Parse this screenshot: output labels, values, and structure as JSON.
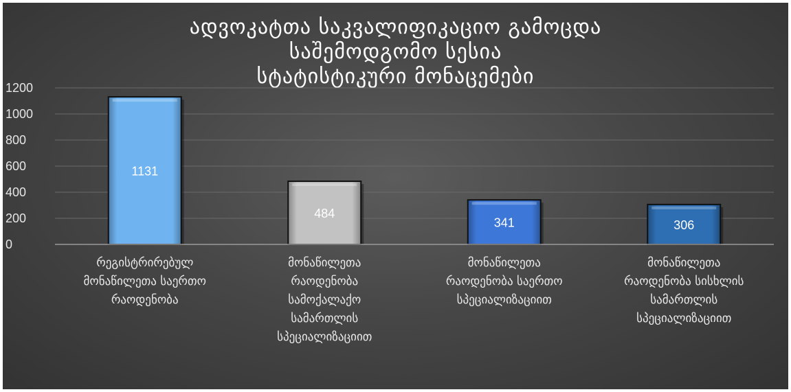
{
  "chart_data": {
    "type": "bar",
    "title_lines": [
      "ადვოკატთა საკვალიფიკაციო გამოცდა",
      "საშემოდგომო სესია",
      "სტატისტიკური მონაცემები"
    ],
    "categories": [
      "რეგისტრირებულ მონაწილეთა საერთო რაოდენობა",
      "მონაწილეთა რაოდენობა სამოქალაქო სამართლის სპეციალიზაციით",
      "მონაწილეთა რაოდენობა საერთო სპეციალიზაციით",
      "მონაწილეთა რაოდენობა სისხლის სამართლის სპეციალიზაციით"
    ],
    "category_lines": [
      [
        "რეგისტრირებულ",
        "მონაწილეთა საერთო",
        "რაოდენობა"
      ],
      [
        "მონაწილეთა",
        "რაოდენობა",
        "სამოქალაქო",
        "სამართლის",
        "სპეციალიზაციით"
      ],
      [
        "მონაწილეთა",
        "რაოდენობა საერთო",
        "სპეციალიზაციით"
      ],
      [
        "მონაწილეთა",
        "რაოდენობა სისხლის",
        "სამართლის",
        "სპეციალიზაციით"
      ]
    ],
    "values": [
      1131,
      484,
      341,
      306
    ],
    "data_labels": [
      "1131",
      "484",
      "341",
      "306"
    ],
    "ylim": [
      0,
      1200
    ],
    "yticks": [
      0,
      200,
      400,
      600,
      800,
      1000,
      1200
    ],
    "ytick_labels": [
      "0",
      "200",
      "400",
      "600",
      "800",
      "1000",
      "1200"
    ],
    "grid": true,
    "xlabel": "",
    "ylabel": "",
    "bar_colors": [
      "#6fb4f0",
      "#c2c2c2",
      "#3d78d8",
      "#2e6fb3"
    ],
    "label_colors": [
      "#ffffff",
      "#ffffff",
      "#ffffff",
      "#ffffff"
    ]
  }
}
